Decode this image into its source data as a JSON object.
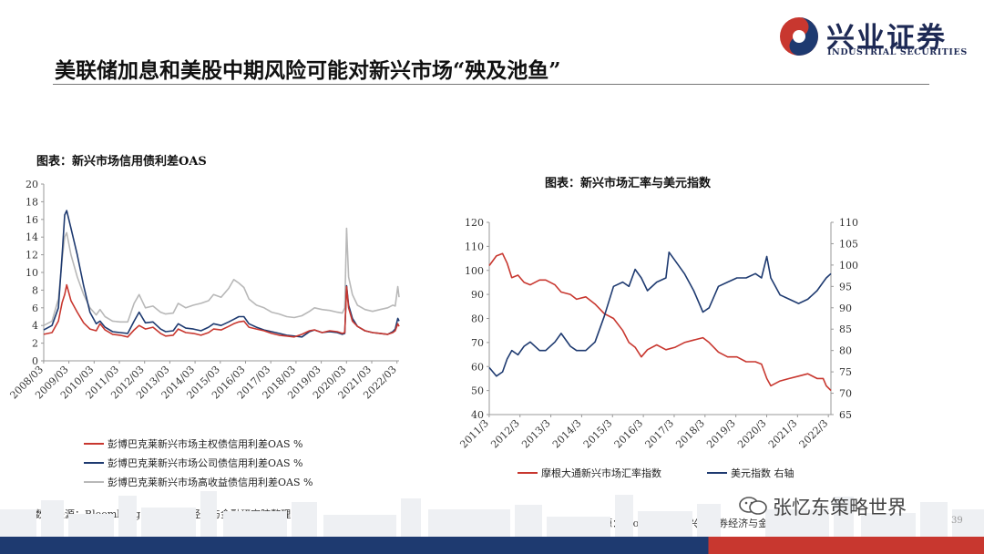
{
  "header": {
    "logo_cn": "兴业证券",
    "logo_en": "INDUSTRIAL SECURITIES",
    "title": "美联储加息和美股中期风险可能对新兴市场“殃及池鱼”",
    "colors": {
      "navy": "#1e3a70",
      "red": "#c8372f"
    }
  },
  "footer": {
    "watermark": "张忆东策略世界",
    "page_number": "39"
  },
  "chart_data": [
    {
      "type": "line",
      "title": "图表：新兴市场信用债利差OAS",
      "source": "数据来源：Bloomberg，兴业证券经济与金融研究院整理",
      "xlabel": "",
      "ylabel": "",
      "ylim": [
        0,
        20
      ],
      "yticks": [
        "0",
        "2",
        "4",
        "6",
        "8",
        "10",
        "12",
        "14",
        "16",
        "18",
        "20"
      ],
      "xticks": [
        "2008/03",
        "2009/03",
        "2010/03",
        "2011/03",
        "2012/03",
        "2013/03",
        "2014/03",
        "2015/03",
        "2016/03",
        "2017/03",
        "2018/03",
        "2019/03",
        "2020/03",
        "2021/03",
        "2022/03"
      ],
      "xrange": [
        2008.17,
        2022.25
      ],
      "grid": false,
      "legend_position": "bottom",
      "series": [
        {
          "name": "彭博巴克莱新兴市场主权债信用利差OAS %",
          "color": "#c8372f",
          "x": [
            2008.17,
            2008.5,
            2008.75,
            2008.9,
            2009.0,
            2009.08,
            2009.25,
            2009.5,
            2009.75,
            2010.0,
            2010.25,
            2010.4,
            2010.6,
            2010.9,
            2011.2,
            2011.5,
            2011.75,
            2011.95,
            2012.2,
            2012.5,
            2012.8,
            2013.0,
            2013.3,
            2013.5,
            2013.8,
            2014.1,
            2014.4,
            2014.7,
            2014.9,
            2015.2,
            2015.5,
            2015.7,
            2015.9,
            2016.1,
            2016.3,
            2016.6,
            2016.9,
            2017.2,
            2017.5,
            2017.8,
            2018.1,
            2018.4,
            2018.7,
            2018.9,
            2019.2,
            2019.5,
            2019.8,
            2020.0,
            2020.1,
            2020.17,
            2020.25,
            2020.4,
            2020.6,
            2020.9,
            2021.2,
            2021.5,
            2021.8,
            2022.0,
            2022.1,
            2022.2,
            2022.25
          ],
          "y": [
            3.0,
            3.2,
            4.5,
            6.6,
            7.5,
            8.6,
            6.8,
            5.5,
            4.3,
            3.6,
            3.4,
            4.2,
            3.5,
            3.0,
            2.9,
            2.7,
            3.5,
            4.0,
            3.6,
            3.8,
            3.1,
            2.8,
            2.9,
            3.6,
            3.2,
            3.1,
            2.9,
            3.2,
            3.6,
            3.5,
            3.9,
            4.2,
            4.4,
            4.5,
            3.8,
            3.6,
            3.4,
            3.1,
            2.9,
            2.8,
            2.7,
            3.0,
            3.4,
            3.5,
            3.2,
            3.4,
            3.3,
            3.1,
            3.2,
            8.4,
            6.0,
            4.5,
            3.9,
            3.4,
            3.2,
            3.1,
            3.0,
            3.2,
            3.4,
            4.2,
            3.9
          ]
        },
        {
          "name": "彭博巴克莱新兴市场公司债信用利差OAS %",
          "color": "#1e3a70",
          "x": [
            2008.17,
            2008.5,
            2008.75,
            2008.9,
            2009.0,
            2009.08,
            2009.25,
            2009.5,
            2009.75,
            2010.0,
            2010.25,
            2010.4,
            2010.6,
            2010.9,
            2011.2,
            2011.5,
            2011.75,
            2011.95,
            2012.2,
            2012.5,
            2012.8,
            2013.0,
            2013.3,
            2013.5,
            2013.8,
            2014.1,
            2014.4,
            2014.7,
            2014.9,
            2015.2,
            2015.5,
            2015.7,
            2015.9,
            2016.1,
            2016.3,
            2016.6,
            2016.9,
            2017.2,
            2017.5,
            2017.8,
            2018.1,
            2018.4,
            2018.7,
            2018.9,
            2019.2,
            2019.5,
            2019.8,
            2020.0,
            2020.1,
            2020.17,
            2020.25,
            2020.4,
            2020.6,
            2020.9,
            2021.2,
            2021.5,
            2021.8,
            2022.0,
            2022.1,
            2022.2,
            2022.25
          ],
          "y": [
            3.5,
            4.0,
            6.0,
            12.0,
            16.5,
            17.0,
            15.0,
            12.0,
            8.5,
            5.5,
            4.2,
            4.5,
            3.8,
            3.3,
            3.2,
            3.1,
            4.5,
            5.5,
            4.3,
            4.4,
            3.6,
            3.3,
            3.4,
            4.2,
            3.7,
            3.6,
            3.4,
            3.8,
            4.2,
            4.0,
            4.4,
            4.7,
            5.0,
            5.0,
            4.2,
            3.8,
            3.5,
            3.3,
            3.1,
            2.9,
            2.8,
            2.7,
            3.3,
            3.5,
            3.2,
            3.3,
            3.2,
            3.0,
            3.1,
            8.5,
            6.3,
            4.8,
            3.9,
            3.4,
            3.2,
            3.1,
            3.0,
            3.3,
            3.6,
            4.8,
            4.5
          ]
        },
        {
          "name": "彭博巴克莱新兴市场高收益债信用利差OAS %",
          "color": "#b8b8b8",
          "x": [
            2008.17,
            2008.5,
            2008.75,
            2008.9,
            2009.0,
            2009.08,
            2009.25,
            2009.5,
            2009.75,
            2010.0,
            2010.25,
            2010.4,
            2010.6,
            2010.9,
            2011.2,
            2011.5,
            2011.75,
            2011.95,
            2012.2,
            2012.5,
            2012.8,
            2013.0,
            2013.3,
            2013.5,
            2013.8,
            2014.1,
            2014.4,
            2014.7,
            2014.9,
            2015.2,
            2015.5,
            2015.7,
            2015.9,
            2016.1,
            2016.3,
            2016.6,
            2016.9,
            2017.2,
            2017.5,
            2017.8,
            2018.1,
            2018.4,
            2018.7,
            2018.9,
            2019.2,
            2019.5,
            2019.8,
            2020.0,
            2020.1,
            2020.17,
            2020.25,
            2020.4,
            2020.6,
            2020.9,
            2021.2,
            2021.5,
            2021.8,
            2022.0,
            2022.1,
            2022.2,
            2022.25
          ],
          "y": [
            4.0,
            4.5,
            7.0,
            11.5,
            14.0,
            14.5,
            12.0,
            9.5,
            7.5,
            6.0,
            5.2,
            5.8,
            5.0,
            4.5,
            4.4,
            4.4,
            6.5,
            7.5,
            6.0,
            6.2,
            5.5,
            5.3,
            5.4,
            6.5,
            6.0,
            6.3,
            6.5,
            6.8,
            7.5,
            7.2,
            8.2,
            9.2,
            8.8,
            8.3,
            7.0,
            6.3,
            6.0,
            5.5,
            5.3,
            5.0,
            4.9,
            5.1,
            5.6,
            6.0,
            5.8,
            5.7,
            5.5,
            5.4,
            6.0,
            15.0,
            9.5,
            7.5,
            6.3,
            5.8,
            5.6,
            5.8,
            6.0,
            6.3,
            6.2,
            8.4,
            7.2
          ]
        }
      ]
    },
    {
      "type": "line",
      "title": "图表：新兴市场汇率与美元指数",
      "source": "数据来源：Bloomberg，兴业证券经济与金融研究院整理",
      "xlabel": "",
      "ylabel": "",
      "ylim": [
        40,
        120
      ],
      "y2lim": [
        65,
        110
      ],
      "yticks": [
        "40",
        "50",
        "60",
        "70",
        "80",
        "90",
        "100",
        "110",
        "120"
      ],
      "y2ticks": [
        "65",
        "70",
        "75",
        "80",
        "85",
        "90",
        "95",
        "100",
        "105",
        "110"
      ],
      "xticks": [
        "2011/3",
        "2012/3",
        "2013/3",
        "2014/3",
        "2015/3",
        "2016/3",
        "2017/3",
        "2018/3",
        "2019/3",
        "2020/3",
        "2021/3",
        "2022/3"
      ],
      "xrange": [
        2011.17,
        2022.25
      ],
      "grid": false,
      "legend_position": "bottom",
      "series": [
        {
          "name": "摩根大通新兴市场汇率指数",
          "color": "#c8372f",
          "axis": "left",
          "x": [
            2011.17,
            2011.4,
            2011.6,
            2011.75,
            2011.9,
            2012.1,
            2012.3,
            2012.5,
            2012.8,
            2013.0,
            2013.3,
            2013.5,
            2013.8,
            2014.0,
            2014.3,
            2014.6,
            2014.9,
            2015.2,
            2015.5,
            2015.7,
            2015.9,
            2016.1,
            2016.3,
            2016.6,
            2016.9,
            2017.2,
            2017.5,
            2017.8,
            2018.1,
            2018.3,
            2018.6,
            2018.9,
            2019.2,
            2019.5,
            2019.8,
            2020.0,
            2020.17,
            2020.3,
            2020.6,
            2020.9,
            2021.2,
            2021.5,
            2021.8,
            2022.0,
            2022.1,
            2022.25
          ],
          "y": [
            102,
            106,
            107,
            103,
            97,
            98,
            95,
            94,
            96,
            96,
            94,
            91,
            90,
            88,
            89,
            86,
            82,
            80,
            75,
            70,
            68,
            64,
            67,
            69,
            67,
            68,
            70,
            71,
            72,
            70,
            66,
            64,
            64,
            62,
            62,
            61,
            55,
            52,
            54,
            55,
            56,
            57,
            55,
            55,
            52,
            50
          ]
        },
        {
          "name": "美元指数 右轴",
          "color": "#1e3a70",
          "axis": "right",
          "x": [
            2011.17,
            2011.4,
            2011.6,
            2011.75,
            2011.9,
            2012.1,
            2012.3,
            2012.5,
            2012.8,
            2013.0,
            2013.3,
            2013.5,
            2013.8,
            2014.0,
            2014.3,
            2014.6,
            2014.9,
            2015.2,
            2015.5,
            2015.7,
            2015.9,
            2016.1,
            2016.3,
            2016.6,
            2016.9,
            2017.0,
            2017.2,
            2017.5,
            2017.8,
            2018.1,
            2018.3,
            2018.6,
            2018.9,
            2019.2,
            2019.5,
            2019.8,
            2020.0,
            2020.17,
            2020.3,
            2020.6,
            2020.9,
            2021.2,
            2021.5,
            2021.8,
            2022.0,
            2022.1,
            2022.25
          ],
          "y": [
            76,
            74,
            75,
            78,
            80,
            79,
            81,
            82,
            80,
            80,
            82,
            84,
            81,
            80,
            80,
            82,
            88,
            95,
            96,
            95,
            99,
            97,
            94,
            96,
            97,
            103,
            101,
            98,
            94,
            89,
            90,
            95,
            96,
            97,
            97,
            98,
            97,
            102,
            97,
            93,
            92,
            91,
            92,
            94,
            96,
            97,
            98
          ]
        }
      ]
    }
  ]
}
